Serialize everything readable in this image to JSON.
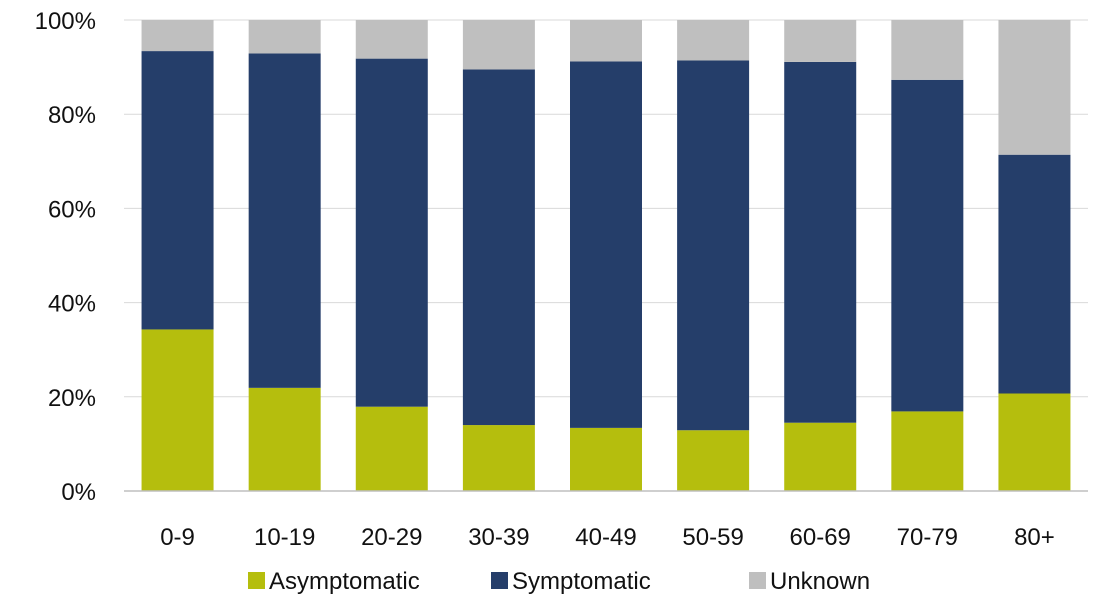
{
  "chart_data": {
    "type": "bar",
    "stacked": true,
    "categories": [
      "0-9",
      "10-19",
      "20-29",
      "30-39",
      "40-49",
      "50-59",
      "60-69",
      "70-79",
      "80+"
    ],
    "series": [
      {
        "name": "Asymptomatic",
        "color": "#b5be0d",
        "values": [
          34.3,
          21.9,
          17.9,
          14.0,
          13.4,
          12.9,
          14.5,
          16.9,
          20.7
        ]
      },
      {
        "name": "Symptomatic",
        "color": "#253e6a",
        "values": [
          59.1,
          71.0,
          73.9,
          75.5,
          77.8,
          78.5,
          76.6,
          70.4,
          50.7
        ]
      },
      {
        "name": "Unknown",
        "color": "#bfbfbf",
        "values": [
          6.6,
          7.1,
          8.2,
          10.5,
          8.8,
          8.6,
          8.9,
          12.7,
          28.6
        ]
      }
    ],
    "title": "",
    "xlabel": "",
    "ylabel": "",
    "ylim": [
      0,
      100
    ],
    "y_ticks": [
      "0%",
      "20%",
      "40%",
      "60%",
      "80%",
      "100%"
    ],
    "grid": true,
    "legend_position": "bottom"
  }
}
